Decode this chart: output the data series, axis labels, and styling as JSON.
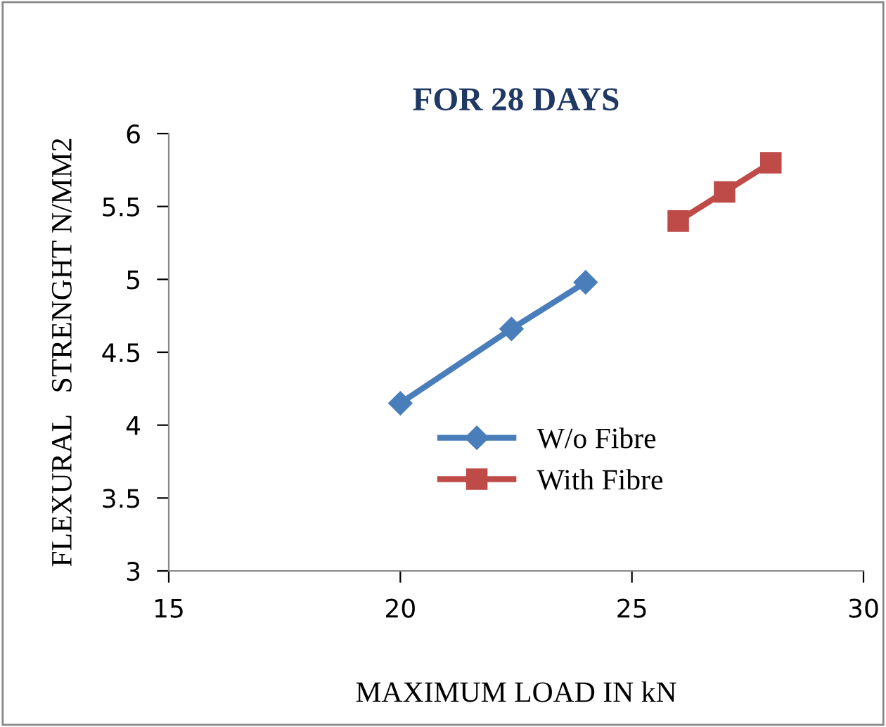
{
  "chart_data": {
    "type": "line",
    "title": "FOR 28 DAYS",
    "xlabel": "MAXIMUM LOAD IN kN",
    "ylabel": "FLEXURAL   STRENGHT N/MM2",
    "series": [
      {
        "name": "W/o Fibre",
        "color": "#4a7ebb",
        "marker": "diamond",
        "x": [
          20,
          22.4,
          24
        ],
        "values": [
          4.15,
          4.66,
          4.98
        ]
      },
      {
        "name": "With Fibre",
        "color": "#be4b48",
        "marker": "square",
        "x": [
          26,
          27,
          28
        ],
        "values": [
          5.4,
          5.6,
          5.8
        ]
      }
    ],
    "xlim": [
      15,
      30
    ],
    "xticks": [
      15,
      20,
      25,
      30
    ],
    "ylim": [
      3,
      6
    ],
    "yticks": [
      3,
      3.5,
      4,
      4.5,
      5,
      5.5,
      6
    ],
    "grid": false,
    "legend": "center right",
    "line_style": "solid"
  }
}
